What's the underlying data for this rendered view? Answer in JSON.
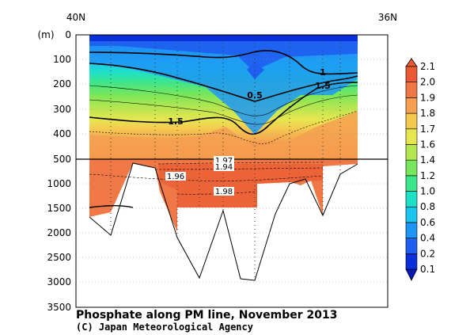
{
  "chart_data": {
    "type": "heatmap",
    "title": "Phosphate along PM line, November 2013",
    "credit": "(C) Japan Meteorological Agency",
    "xlabel_left": "40N",
    "xlabel_right": "36N",
    "ylabel": "(m)",
    "upper_yticks": [
      "0",
      "100",
      "200",
      "300",
      "400",
      "500"
    ],
    "lower_yticks": [
      "1000",
      "1500",
      "2000",
      "2500",
      "3000",
      "3500"
    ],
    "colorbar": {
      "levels": [
        "0.1",
        "0.2",
        "0.4",
        "0.6",
        "0.8",
        "1.0",
        "1.2",
        "1.4",
        "1.6",
        "1.7",
        "1.8",
        "1.9",
        "2.0",
        "2.1"
      ],
      "colors": [
        "#0a2fd8",
        "#1e5ef0",
        "#1e96f5",
        "#1ec4f0",
        "#1ee0c8",
        "#3ce68c",
        "#78e65a",
        "#b4e650",
        "#e6e650",
        "#f5c850",
        "#f5a050",
        "#f07846",
        "#eb5a32"
      ]
    },
    "contour_labels": [
      "0.5",
      "1",
      "1.5",
      "1.5",
      "1.97",
      "1.94",
      "1.96",
      "1.98"
    ]
  }
}
